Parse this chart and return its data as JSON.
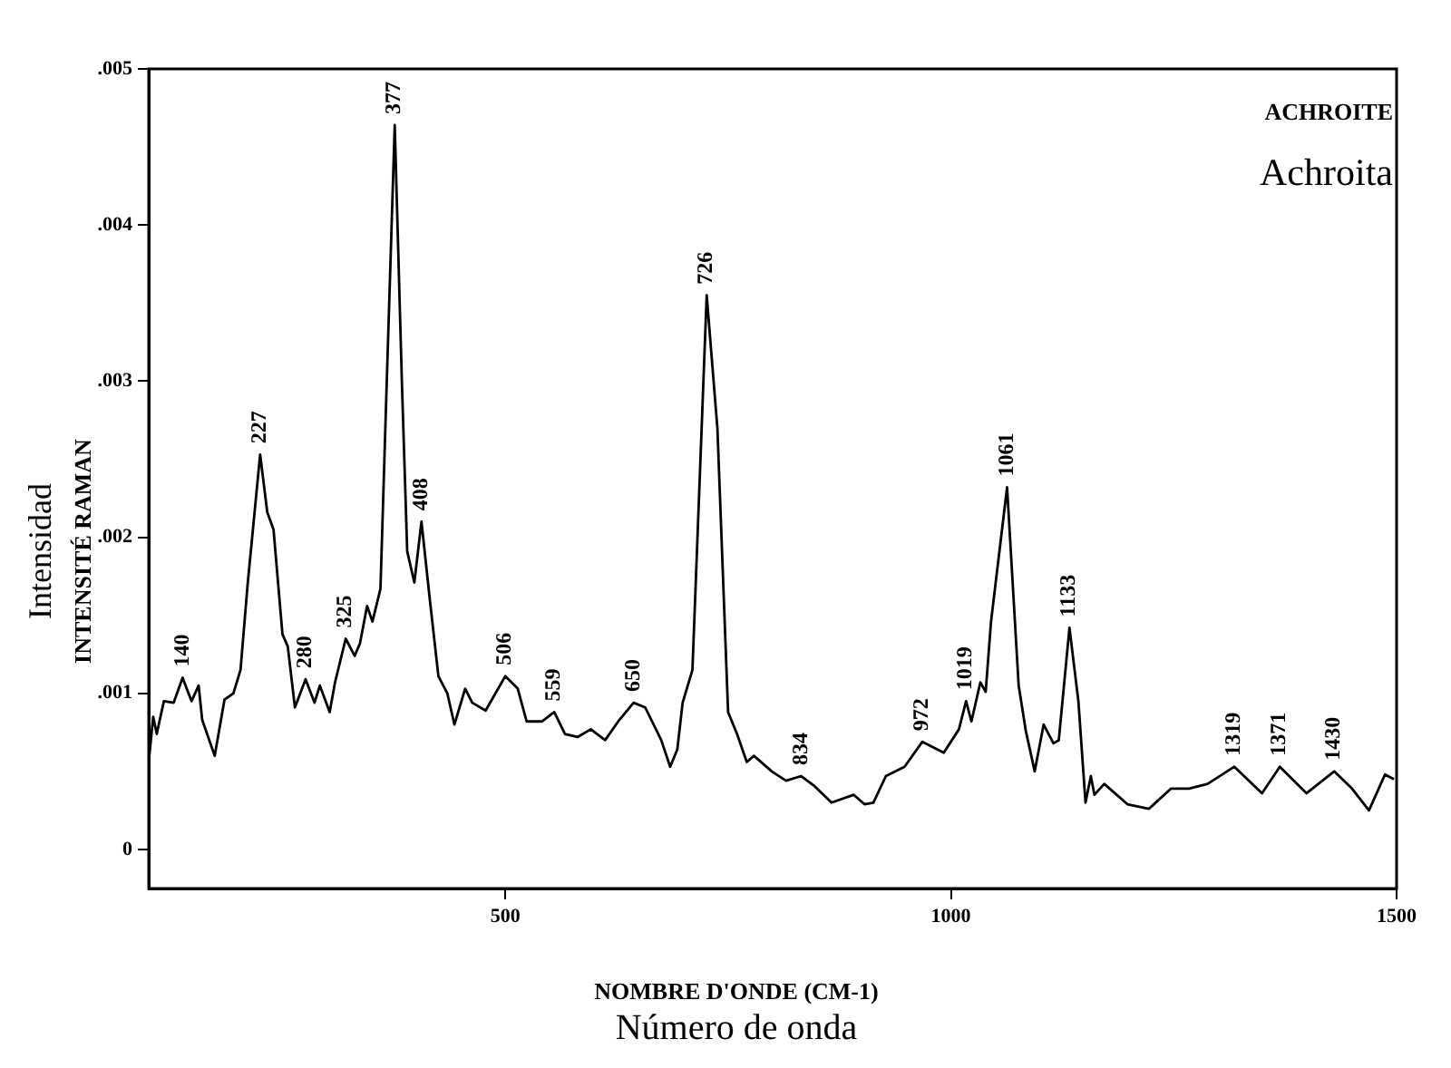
{
  "chart_data": {
    "type": "line",
    "title": "ACHROITE",
    "subtitle": "Achroita",
    "xlabel": "NOMBRE D'ONDE (CM-1)",
    "ylabel": "INTENSITÉ RAMAN",
    "xlim": [
      100,
      1500
    ],
    "xticks": [
      500,
      1000,
      1500
    ],
    "ylim": [
      -0.00025,
      0.005
    ],
    "yticks": [
      {
        "value": 0,
        "label": "0"
      },
      {
        "value": 0.001,
        "label": ".001"
      },
      {
        "value": 0.002,
        "label": ".002"
      },
      {
        "value": 0.003,
        "label": ".003"
      },
      {
        "value": 0.004,
        "label": ".004"
      },
      {
        "value": 0.005,
        "label": ".005"
      }
    ],
    "grid": false,
    "legend": false,
    "x": [
      100,
      105,
      109,
      117,
      128,
      138,
      148,
      156,
      160,
      174,
      185,
      195,
      203,
      211,
      225,
      233,
      240,
      250,
      256,
      264,
      276,
      286,
      292,
      303,
      309,
      321,
      331,
      337,
      345,
      351,
      360,
      366,
      376,
      384,
      390,
      398,
      406,
      415,
      425,
      435,
      443,
      455,
      463,
      478,
      500,
      514,
      524,
      541,
      555,
      567,
      581,
      596,
      612,
      628,
      644,
      657,
      675,
      685,
      693,
      699,
      710,
      726,
      738,
      750,
      760,
      771,
      779,
      799,
      815,
      832,
      846,
      866,
      891,
      903,
      913,
      927,
      948,
      968,
      992,
      1009,
      1017,
      1023,
      1033,
      1039,
      1045,
      1063,
      1076,
      1084,
      1094,
      1104,
      1115,
      1121,
      1133,
      1143,
      1151,
      1157,
      1161,
      1172,
      1198,
      1222,
      1247,
      1267,
      1288,
      1318,
      1349,
      1369,
      1399,
      1430,
      1450,
      1469,
      1487,
      1497
    ],
    "series": [
      {
        "color": "#000000",
        "values": [
          0.00056,
          0.00085,
          0.00074,
          0.00095,
          0.00094,
          0.0011,
          0.00095,
          0.00105,
          0.00083,
          0.0006,
          0.00096,
          0.001,
          0.00115,
          0.0017,
          0.00253,
          0.00216,
          0.00205,
          0.00138,
          0.0013,
          0.00091,
          0.00109,
          0.00094,
          0.00105,
          0.00088,
          0.00107,
          0.00135,
          0.00124,
          0.00132,
          0.00156,
          0.00146,
          0.00167,
          0.0028,
          0.00464,
          0.003,
          0.00191,
          0.00171,
          0.0021,
          0.00162,
          0.00111,
          0.001,
          0.0008,
          0.00103,
          0.00094,
          0.00089,
          0.00111,
          0.00103,
          0.00082,
          0.00082,
          0.00088,
          0.00074,
          0.00072,
          0.00077,
          0.0007,
          0.00083,
          0.00094,
          0.00091,
          0.0007,
          0.00053,
          0.00064,
          0.00094,
          0.00115,
          0.00355,
          0.0027,
          0.00088,
          0.00074,
          0.00056,
          0.0006,
          0.0005,
          0.00044,
          0.00047,
          0.00041,
          0.0003,
          0.00035,
          0.00029,
          0.0003,
          0.00047,
          0.00053,
          0.00069,
          0.00062,
          0.00077,
          0.00095,
          0.00082,
          0.00107,
          0.00101,
          0.00146,
          0.00232,
          0.00105,
          0.00076,
          0.0005,
          0.0008,
          0.00068,
          0.0007,
          0.00142,
          0.00095,
          0.0003,
          0.00047,
          0.00035,
          0.00042,
          0.00029,
          0.00026,
          0.00039,
          0.00039,
          0.00042,
          0.00053,
          0.00036,
          0.00053,
          0.00036,
          0.0005,
          0.00039,
          0.00025,
          0.00048,
          0.00045
        ]
      }
    ],
    "annotations": [
      {
        "text": "140",
        "x": 138,
        "y": 0.0011
      },
      {
        "text": "227",
        "x": 225,
        "y": 0.00253
      },
      {
        "text": "280",
        "x": 276,
        "y": 0.00109
      },
      {
        "text": "325",
        "x": 321,
        "y": 0.00135
      },
      {
        "text": "377",
        "x": 376,
        "y": 0.00464
      },
      {
        "text": "408",
        "x": 406,
        "y": 0.0021
      },
      {
        "text": "506",
        "x": 500,
        "y": 0.00111
      },
      {
        "text": "559",
        "x": 555,
        "y": 0.00088
      },
      {
        "text": "650",
        "x": 644,
        "y": 0.00094
      },
      {
        "text": "726",
        "x": 726,
        "y": 0.00355
      },
      {
        "text": "834",
        "x": 832,
        "y": 0.00047
      },
      {
        "text": "972",
        "x": 968,
        "y": 0.00069
      },
      {
        "text": "1019",
        "x": 1017,
        "y": 0.00095
      },
      {
        "text": "1061",
        "x": 1063,
        "y": 0.00232
      },
      {
        "text": "1133",
        "x": 1133,
        "y": 0.00142
      },
      {
        "text": "1319",
        "x": 1318,
        "y": 0.00053
      },
      {
        "text": "1371",
        "x": 1369,
        "y": 0.00053
      },
      {
        "text": "1430",
        "x": 1430,
        "y": 0.0005
      },
      "Número de onda",
      "Intensidad"
    ]
  }
}
